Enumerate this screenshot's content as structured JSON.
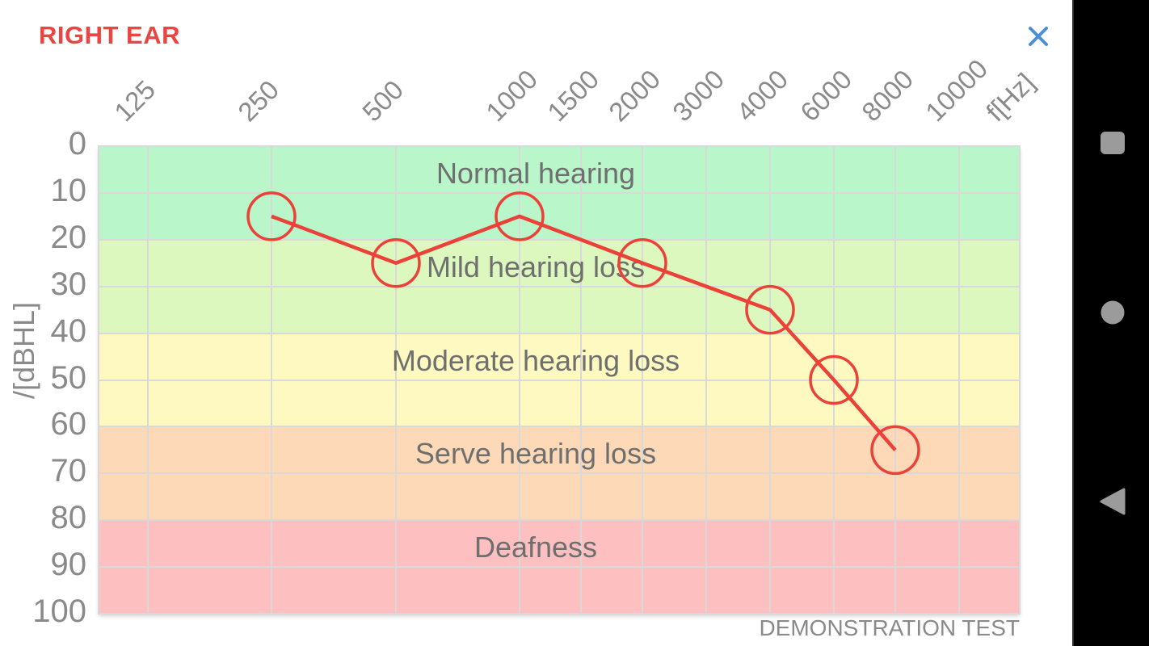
{
  "header": {
    "title": "RIGHT EAR",
    "close_icon": "close-x"
  },
  "watermark": {
    "text": "DEMONSTRATION TEST"
  },
  "chart_data": {
    "type": "line",
    "title": "",
    "grid": true,
    "legend": "none",
    "x_axis": {
      "label": "f[Hz]",
      "ticks": [
        "125",
        "250",
        "500",
        "1000",
        "1500",
        "2000",
        "3000",
        "4000",
        "6000",
        "8000",
        "10000"
      ]
    },
    "y_axis": {
      "label": "/[dBHL]",
      "ticks": [
        0,
        10,
        20,
        30,
        40,
        50,
        60,
        70,
        80,
        90,
        100
      ],
      "range": [
        0,
        100
      ],
      "direction": "down"
    },
    "zones": [
      {
        "label": "Normal hearing",
        "from": 0,
        "to": 20,
        "color": "#b9f6ca"
      },
      {
        "label": "Mild hearing loss",
        "from": 20,
        "to": 40,
        "color": "#ddf8bf"
      },
      {
        "label": "Moderate hearing loss",
        "from": 40,
        "to": 60,
        "color": "#fdf9c0"
      },
      {
        "label": "Serve hearing loss",
        "from": 60,
        "to": 80,
        "color": "#fdd9b8"
      },
      {
        "label": "Deafness",
        "from": 80,
        "to": 100,
        "color": "#fdbfbf"
      }
    ],
    "series": [
      {
        "name": "right-ear-threshold",
        "color": "#ec4138",
        "marker": "open-circle",
        "points": [
          {
            "freq": "250",
            "db": 15
          },
          {
            "freq": "500",
            "db": 25
          },
          {
            "freq": "1000",
            "db": 15
          },
          {
            "freq": "2000",
            "db": 25
          },
          {
            "freq": "4000",
            "db": 35
          },
          {
            "freq": "6000",
            "db": 50
          },
          {
            "freq": "8000",
            "db": 65
          }
        ]
      }
    ]
  },
  "colors": {
    "title_red": "#e94542",
    "close_blue": "#4a90d5",
    "grid": "#d9d9d9",
    "axis_text": "#8a8a8a",
    "zone_text": "#6f6f6f",
    "nav_icon": "#9b9b9b"
  },
  "nav_bar": {
    "buttons": [
      {
        "name": "recents",
        "icon": "square"
      },
      {
        "name": "home",
        "icon": "circle"
      },
      {
        "name": "back",
        "icon": "triangle-left"
      }
    ]
  }
}
